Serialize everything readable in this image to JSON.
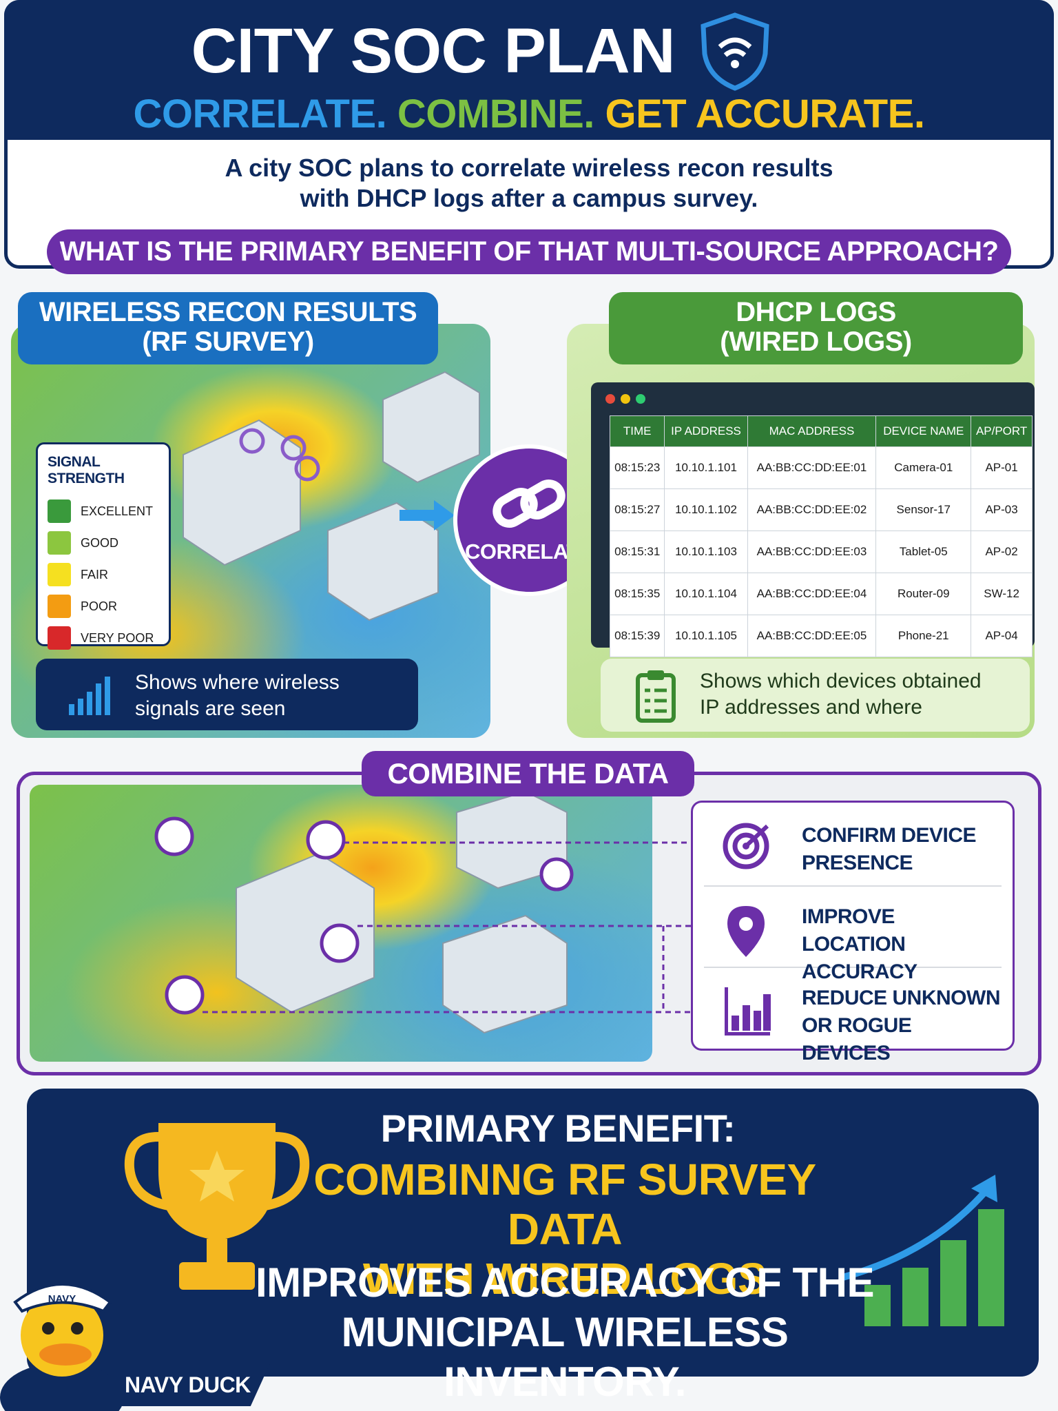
{
  "header": {
    "title": "CITY SOC PLAN",
    "tagline": [
      "CORRELATE.",
      "COMBINE.",
      "GET ACCURATE."
    ]
  },
  "scenario": [
    "A city SOC plans to correlate wireless recon results",
    "with DHCP logs after a campus survey."
  ],
  "question": "WHAT IS THE PRIMARY BENEFIT OF THAT MULTI-SOURCE APPROACH?",
  "rf_panel": {
    "title": [
      "WIRELESS RECON RESULTS",
      "(RF SURVEY)"
    ],
    "legend": {
      "title": "SIGNAL STRENGTH",
      "items": [
        {
          "label": "EXCELLENT",
          "color": "#3a9a3c"
        },
        {
          "label": "GOOD",
          "color": "#8cc63f"
        },
        {
          "label": "FAIR",
          "color": "#f5e020"
        },
        {
          "label": "POOR",
          "color": "#f39c12"
        },
        {
          "label": "VERY POOR",
          "color": "#d8282a"
        }
      ]
    },
    "caption": [
      "Shows where wireless",
      "signals are seen"
    ]
  },
  "correlate": "CORRELATE",
  "dhcp_panel": {
    "title": [
      "DHCP LOGS",
      "(WIRED LOGS)"
    ],
    "table": {
      "columns": [
        "TIME",
        "IP ADDRESS",
        "MAC ADDRESS",
        "DEVICE NAME",
        "AP/PORT"
      ],
      "rows": [
        [
          "08:15:23",
          "10.10.1.101",
          "AA:BB:CC:DD:EE:01",
          "Camera-01",
          "AP-01"
        ],
        [
          "08:15:27",
          "10.10.1.102",
          "AA:BB:CC:DD:EE:02",
          "Sensor-17",
          "AP-03"
        ],
        [
          "08:15:31",
          "10.10.1.103",
          "AA:BB:CC:DD:EE:03",
          "Tablet-05",
          "AP-02"
        ],
        [
          "08:15:35",
          "10.10.1.104",
          "AA:BB:CC:DD:EE:04",
          "Router-09",
          "SW-12"
        ],
        [
          "08:15:39",
          "10.10.1.105",
          "AA:BB:CC:DD:EE:05",
          "Phone-21",
          "AP-04"
        ]
      ]
    },
    "caption": [
      "Shows which devices obtained",
      "IP addresses and where"
    ]
  },
  "combine": {
    "title": "COMBINE THE DATA",
    "benefits": [
      [
        "CONFIRM DEVICE",
        "PRESENCE"
      ],
      [
        "IMPROVE LOCATION",
        "ACCURACY"
      ],
      [
        "REDUCE UNKNOWN",
        "OR ROGUE DEVICES"
      ]
    ]
  },
  "result": {
    "heading": "PRIMARY BENEFIT:",
    "highlight": [
      "COMBINNG RF SURVEY DATA",
      "WITH WIRED LOGS"
    ],
    "conclusion": [
      "IMPROVES ACCURACY OF THE",
      "MUNICIPAL WIRELESS INVENTORY."
    ]
  },
  "mascot": {
    "hat": "NAVY",
    "label": "NAVY DUCK"
  }
}
